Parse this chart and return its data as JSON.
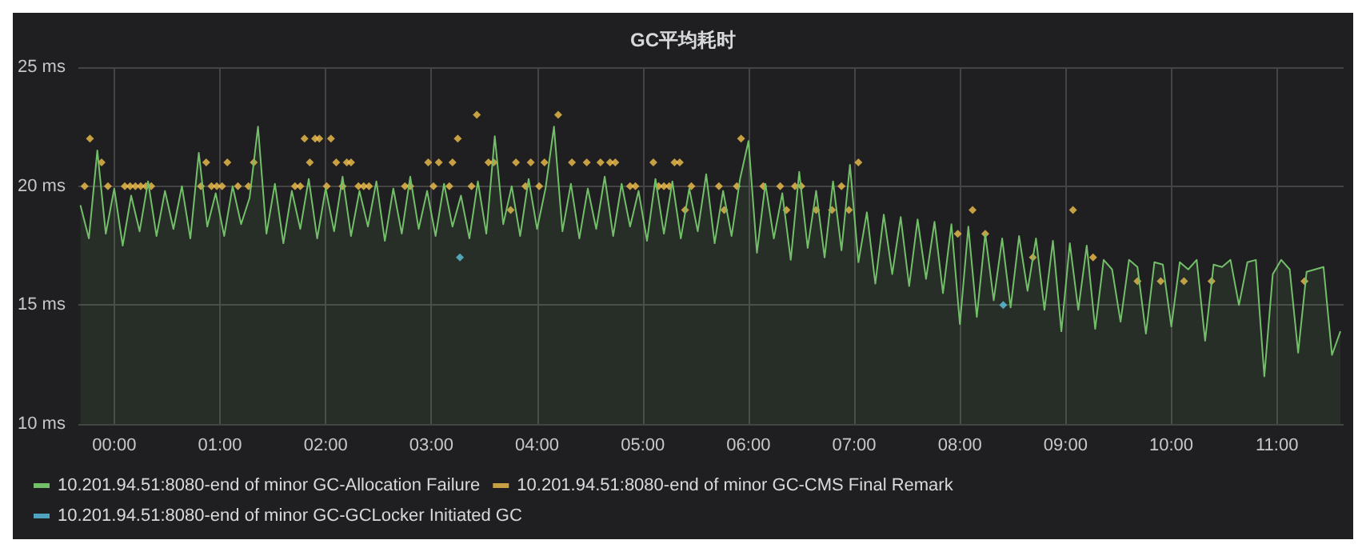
{
  "chart_data": {
    "type": "area",
    "title": "GC平均耗时",
    "grid": true,
    "legend": "bottom",
    "xlim": [
      -0.34,
      11.63
    ],
    "xticks": [
      {
        "value": 0,
        "label": "00:00"
      },
      {
        "value": 1,
        "label": "01:00"
      },
      {
        "value": 2,
        "label": "02:00"
      },
      {
        "value": 3,
        "label": "03:00"
      },
      {
        "value": 4,
        "label": "04:00"
      },
      {
        "value": 5,
        "label": "05:00"
      },
      {
        "value": 6,
        "label": "06:00"
      },
      {
        "value": 7,
        "label": "07:00"
      },
      {
        "value": 8,
        "label": "08:00"
      },
      {
        "value": 9,
        "label": "09:00"
      },
      {
        "value": 10,
        "label": "10:00"
      },
      {
        "value": 11,
        "label": "11:00"
      }
    ],
    "ylim": [
      10,
      25
    ],
    "yticks": [
      {
        "value": 10,
        "label": "10 ms"
      },
      {
        "value": 15,
        "label": "15 ms"
      },
      {
        "value": 20,
        "label": "20 ms"
      },
      {
        "value": 25,
        "label": "25 ms"
      }
    ],
    "series": [
      {
        "name": "10.201.94.51:8080-end of minor GC-Allocation Failure",
        "marker": "none",
        "color": "#73bf69",
        "x": [
          -0.32,
          -0.24,
          -0.16,
          -0.08,
          0,
          0.08,
          0.16,
          0.24,
          0.32,
          0.4,
          0.48,
          0.56,
          0.64,
          0.72,
          0.8,
          0.88,
          0.96,
          1.04,
          1.12,
          1.2,
          1.28,
          1.36,
          1.44,
          1.52,
          1.6,
          1.68,
          1.76,
          1.84,
          1.92,
          2,
          2.08,
          2.16,
          2.24,
          2.32,
          2.4,
          2.48,
          2.56,
          2.64,
          2.72,
          2.8,
          2.88,
          2.96,
          3.04,
          3.12,
          3.2,
          3.28,
          3.36,
          3.44,
          3.52,
          3.6,
          3.68,
          3.76,
          3.84,
          3.92,
          4,
          4.08,
          4.16,
          4.24,
          4.32,
          4.4,
          4.48,
          4.56,
          4.64,
          4.72,
          4.8,
          4.88,
          4.96,
          5.04,
          5.12,
          5.2,
          5.28,
          5.36,
          5.44,
          5.52,
          5.6,
          5.68,
          5.76,
          5.84,
          5.92,
          6,
          6.08,
          6.16,
          6.24,
          6.32,
          6.4,
          6.48,
          6.56,
          6.64,
          6.72,
          6.8,
          6.88,
          6.96,
          7.04,
          7.12,
          7.2,
          7.28,
          7.36,
          7.44,
          7.52,
          7.6,
          7.68,
          7.76,
          7.84,
          7.92,
          8,
          8.08,
          8.16,
          8.24,
          8.32,
          8.4,
          8.48,
          8.56,
          8.64,
          8.72,
          8.8,
          8.88,
          8.96,
          9.04,
          9.12,
          9.2,
          9.28,
          9.36,
          9.44,
          9.52,
          9.6,
          9.68,
          9.76,
          9.84,
          9.92,
          10,
          10.08,
          10.16,
          10.24,
          10.32,
          10.4,
          10.48,
          10.56,
          10.64,
          10.72,
          10.8,
          10.88,
          10.96,
          11.04,
          11.12,
          11.2,
          11.28,
          11.36,
          11.44,
          11.52,
          11.6
        ],
        "values": [
          19.2,
          17.8,
          21.5,
          18.0,
          19.9,
          17.5,
          19.6,
          18.1,
          20.2,
          17.9,
          19.8,
          18.2,
          20.0,
          17.8,
          21.4,
          18.3,
          19.7,
          17.9,
          20.0,
          18.4,
          19.5,
          22.5,
          18.0,
          20.1,
          17.6,
          19.8,
          18.2,
          20.3,
          17.8,
          19.9,
          18.1,
          20.4,
          17.9,
          19.8,
          18.3,
          20.2,
          17.7,
          19.9,
          18.0,
          20.4,
          18.2,
          19.8,
          17.9,
          20.1,
          18.3,
          19.6,
          17.8,
          20.2,
          18.0,
          22.1,
          18.4,
          20.0,
          17.9,
          20.3,
          18.2,
          19.9,
          22.5,
          18.1,
          20.1,
          17.8,
          19.9,
          18.2,
          20.4,
          17.9,
          20.1,
          18.3,
          19.8,
          17.7,
          20.3,
          18.0,
          20.2,
          17.8,
          19.9,
          18.1,
          20.5,
          17.6,
          19.8,
          17.9,
          20.3,
          21.9,
          17.2,
          20.1,
          17.8,
          19.7,
          16.9,
          20.6,
          17.4,
          19.8,
          17.0,
          20.2,
          17.3,
          20.9,
          16.8,
          18.9,
          15.9,
          18.8,
          16.3,
          18.7,
          15.8,
          18.6,
          16.1,
          18.5,
          15.5,
          18.4,
          14.2,
          18.3,
          14.5,
          18.0,
          15.2,
          17.8,
          14.9,
          17.9,
          15.6,
          17.8,
          14.8,
          17.7,
          13.9,
          17.6,
          14.8,
          17.5,
          14.0,
          16.9,
          16.5,
          14.3,
          16.9,
          16.6,
          13.8,
          16.8,
          16.7,
          14.1,
          16.8,
          16.5,
          16.9,
          13.5,
          16.7,
          16.6,
          16.9,
          15.0,
          16.8,
          16.9,
          12.0,
          16.3,
          16.9,
          16.5,
          13.0,
          16.4,
          16.5,
          16.6,
          12.9,
          13.9
        ]
      },
      {
        "name": "10.201.94.51:8080-end of minor GC-CMS Final Remark",
        "type": "scatter",
        "marker": "diamond",
        "color": "#f2c14e",
        "x": [
          -0.28,
          -0.23,
          -0.12,
          -0.06,
          0.1,
          0.15,
          0.2,
          0.25,
          0.3,
          0.35,
          0.82,
          0.87,
          0.92,
          0.97,
          1.02,
          1.07,
          1.17,
          1.27,
          1.32,
          1.71,
          1.76,
          1.8,
          1.85,
          1.9,
          1.94,
          2.01,
          2.05,
          2.1,
          2.16,
          2.2,
          2.24,
          2.31,
          2.36,
          2.41,
          2.75,
          2.8,
          2.97,
          3.02,
          3.07,
          3.17,
          3.2,
          3.25,
          3.38,
          3.43,
          3.54,
          3.59,
          3.75,
          3.8,
          3.89,
          3.94,
          4.02,
          4.07,
          4.2,
          4.33,
          4.47,
          4.6,
          4.69,
          4.74,
          4.88,
          4.93,
          5.1,
          5.15,
          5.2,
          5.25,
          5.3,
          5.35,
          5.4,
          5.46,
          5.72,
          5.77,
          5.89,
          5.93,
          6.14,
          6.3,
          6.36,
          6.44,
          6.5,
          6.64,
          6.79,
          6.88,
          6.95,
          7.04,
          7.98,
          8.12,
          8.24,
          8.69,
          9.07,
          9.26,
          9.68,
          9.9,
          10.12,
          10.38,
          11.26
        ],
        "values": [
          20,
          22,
          21,
          20,
          20,
          20,
          20,
          20,
          20,
          20,
          20,
          21,
          20,
          20,
          20,
          21,
          20,
          20,
          21,
          20,
          20,
          22,
          21,
          22,
          22,
          20,
          22,
          21,
          20,
          21,
          21,
          20,
          20,
          20,
          20,
          20,
          21,
          20,
          21,
          20,
          21,
          22,
          20,
          23,
          21,
          21,
          19,
          21,
          20,
          21,
          20,
          21,
          23,
          21,
          21,
          21,
          21,
          21,
          20,
          20,
          21,
          20,
          20,
          20,
          21,
          21,
          19,
          20,
          20,
          19,
          20,
          22,
          20,
          20,
          19,
          20,
          20,
          19,
          19,
          20,
          19,
          21,
          18,
          19,
          18,
          17,
          19,
          17,
          16,
          16,
          16,
          16,
          16
        ]
      },
      {
        "name": "10.201.94.51:8080-end of minor GC-GCLocker Initiated GC",
        "type": "scatter",
        "marker": "diamond",
        "color": "#5dc4e8",
        "x": [
          3.27,
          8.41
        ],
        "values": [
          17,
          15
        ]
      }
    ]
  }
}
